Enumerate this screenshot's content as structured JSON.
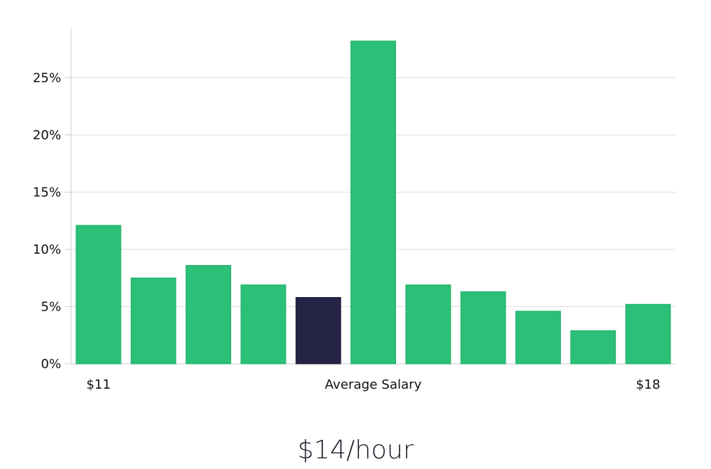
{
  "chart_data": {
    "type": "bar",
    "values": [
      12.1,
      7.5,
      8.6,
      6.9,
      5.8,
      28.2,
      6.9,
      6.3,
      4.6,
      2.9,
      5.2
    ],
    "highlight_index": 4,
    "x_labels": [
      {
        "text": "$11",
        "position": "start"
      },
      {
        "text": "Average Salary",
        "position": "center"
      },
      {
        "text": "$18",
        "position": "end"
      }
    ],
    "y_ticks": [
      {
        "value": 0,
        "label": "0%"
      },
      {
        "value": 5,
        "label": "5%"
      },
      {
        "value": 10,
        "label": "10%"
      },
      {
        "value": 15,
        "label": "15%"
      },
      {
        "value": 20,
        "label": "20%"
      },
      {
        "value": 25,
        "label": "25%"
      }
    ],
    "ylim": [
      0,
      29.3
    ],
    "grid": true,
    "colors": {
      "bar": "#2bbf78",
      "highlight": "#262446",
      "grid": "#dddddd",
      "axis": "#cccccc"
    }
  },
  "summary": {
    "average_salary": "$14/hour"
  }
}
